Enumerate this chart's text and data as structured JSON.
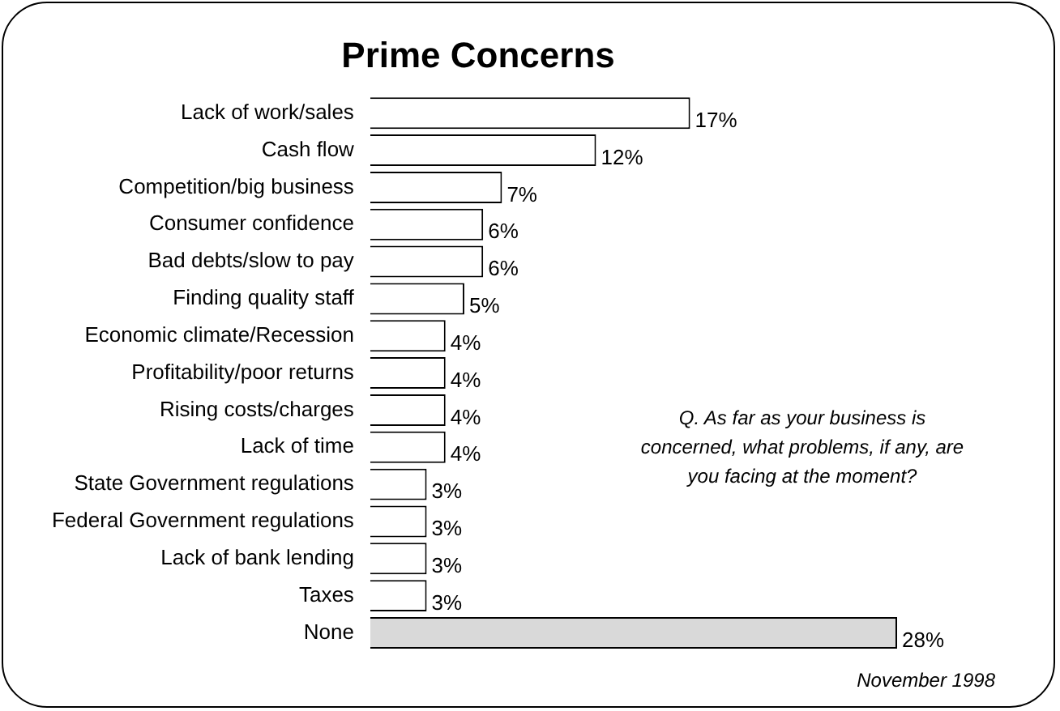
{
  "chart_data": {
    "type": "bar",
    "orientation": "horizontal",
    "title": "Prime Concerns",
    "categories": [
      "Lack of work/sales",
      "Cash flow",
      "Competition/big business",
      "Consumer confidence",
      "Bad debts/slow to pay",
      "Finding quality staff",
      "Economic climate/Recession",
      "Profitability/poor returns",
      "Rising costs/charges",
      "Lack of time",
      "State Government regulations",
      "Federal Government regulations",
      "Lack of bank lending",
      "Taxes",
      "None"
    ],
    "values": [
      17,
      12,
      7,
      6,
      6,
      5,
      4,
      4,
      4,
      4,
      3,
      3,
      3,
      3,
      28
    ],
    "value_labels": [
      "17%",
      "12%",
      "7%",
      "6%",
      "6%",
      "5%",
      "4%",
      "4%",
      "4%",
      "4%",
      "3%",
      "3%",
      "3%",
      "3%",
      "28%"
    ],
    "colors": [
      "#ffffff",
      "#ffffff",
      "#ffffff",
      "#ffffff",
      "#ffffff",
      "#ffffff",
      "#ffffff",
      "#ffffff",
      "#ffffff",
      "#ffffff",
      "#ffffff",
      "#ffffff",
      "#ffffff",
      "#ffffff",
      "#d9d9d9"
    ],
    "annotations": [
      "Q. As far as your business is concerned, what problems, if any, are you facing at the moment?",
      "November 1998"
    ]
  }
}
